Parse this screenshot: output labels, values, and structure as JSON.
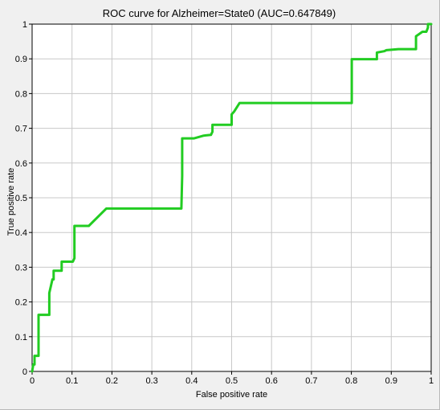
{
  "chart_data": {
    "type": "line",
    "title": "ROC curve for Alzheimer=State0 (AUC=0.647849)",
    "xlabel": "False positive rate",
    "ylabel": "True positive rate",
    "xlim": [
      0,
      1
    ],
    "ylim": [
      0,
      1
    ],
    "xticks": [
      "0",
      "0.1",
      "0.2",
      "0.3",
      "0.4",
      "0.5",
      "0.6",
      "0.7",
      "0.8",
      "0.9",
      "1"
    ],
    "yticks": [
      "0",
      "0.1",
      "0.2",
      "0.3",
      "0.4",
      "0.5",
      "0.6",
      "0.7",
      "0.8",
      "0.9",
      "1"
    ],
    "grid": true,
    "series": [
      {
        "color": "#22cc22",
        "x": [
          0,
          0.003,
          0.006,
          0.006,
          0.016,
          0.016,
          0.043,
          0.043,
          0.051,
          0.054,
          0.054,
          0.074,
          0.074,
          0.102,
          0.106,
          0.106,
          0.142,
          0.186,
          0.374,
          0.376,
          0.376,
          0.406,
          0.43,
          0.448,
          0.452,
          0.452,
          0.5,
          0.5,
          0.506,
          0.52,
          0.801,
          0.801,
          0.864,
          0.864,
          0.882,
          0.888,
          0.918,
          0.962,
          0.962,
          0.978,
          0.988,
          0.992,
          0.992,
          1.0
        ],
        "y": [
          0,
          0.02,
          0.02,
          0.045,
          0.045,
          0.163,
          0.163,
          0.226,
          0.265,
          0.265,
          0.29,
          0.29,
          0.316,
          0.316,
          0.326,
          0.419,
          0.419,
          0.469,
          0.469,
          0.563,
          0.671,
          0.671,
          0.679,
          0.681,
          0.69,
          0.71,
          0.71,
          0.74,
          0.748,
          0.773,
          0.773,
          0.899,
          0.899,
          0.918,
          0.922,
          0.925,
          0.928,
          0.928,
          0.965,
          0.978,
          0.978,
          0.99,
          1.0,
          1.0
        ]
      }
    ]
  }
}
